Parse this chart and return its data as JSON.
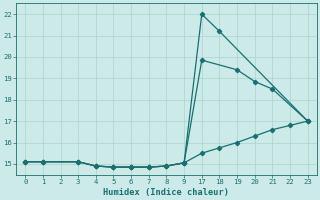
{
  "bg_color": "#cceae7",
  "grid_color": "#aad4d0",
  "line_color": "#1a7070",
  "xlabel": "Humidex (Indice chaleur)",
  "xlim": [
    -0.5,
    16.5
  ],
  "ylim": [
    14.5,
    22.5
  ],
  "yticks": [
    15,
    16,
    17,
    18,
    19,
    20,
    21,
    22
  ],
  "xtick_positions": [
    0,
    1,
    2,
    3,
    4,
    5,
    6,
    7,
    8,
    9,
    10,
    11,
    12,
    13,
    14,
    15,
    16
  ],
  "xtick_labels": [
    "0",
    "1",
    "2",
    "3",
    "4",
    "5",
    "6",
    "7",
    "8",
    "9",
    "17",
    "18",
    "19",
    "20",
    "21",
    "22",
    "23"
  ],
  "line1_idx": [
    0,
    1,
    3,
    4,
    5,
    6,
    7,
    8,
    9,
    10,
    11,
    16
  ],
  "line1_y": [
    15.1,
    15.1,
    15.1,
    14.9,
    14.85,
    14.85,
    14.85,
    14.9,
    15.05,
    22.0,
    21.2,
    17.0
  ],
  "line2_idx": [
    0,
    1,
    3,
    4,
    5,
    6,
    7,
    8,
    9,
    10,
    12,
    13,
    14,
    16
  ],
  "line2_y": [
    15.1,
    15.1,
    15.1,
    14.9,
    14.85,
    14.85,
    14.85,
    14.9,
    15.05,
    19.85,
    19.4,
    18.85,
    18.5,
    17.0
  ],
  "line3_idx": [
    0,
    1,
    3,
    4,
    5,
    6,
    7,
    8,
    9,
    10,
    11,
    12,
    13,
    14,
    15,
    16
  ],
  "line3_y": [
    15.1,
    15.1,
    15.1,
    14.9,
    14.85,
    14.85,
    14.85,
    14.9,
    15.05,
    15.5,
    15.75,
    16.0,
    16.3,
    16.6,
    16.8,
    17.0
  ]
}
